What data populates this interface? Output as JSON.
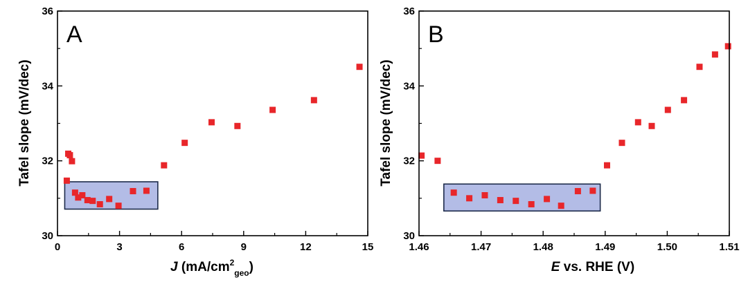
{
  "colors": {
    "marker": "#e8262a",
    "box_fill": "#b3bce6",
    "box_stroke": "#1c2a4a",
    "axis": "#000000"
  },
  "chart_data": [
    {
      "type": "scatter",
      "panel_label": "A",
      "ylabel": "Tafel slope (mV/dec)",
      "xlabel": {
        "var": "J",
        "pre": " (mA/cm",
        "sup": "2",
        "sub": "geo",
        "post": ")"
      },
      "xlim": [
        0,
        15
      ],
      "ylim": [
        30,
        36
      ],
      "xticks": [
        0,
        3,
        6,
        9,
        12,
        15
      ],
      "xtick_labels": [
        "0",
        "3",
        "6",
        "9",
        "12",
        "15"
      ],
      "yticks": [
        30,
        32,
        34,
        36
      ],
      "ytick_labels": [
        "30",
        "32",
        "34",
        "36"
      ],
      "points": [
        {
          "x": 0.45,
          "y": 31.47
        },
        {
          "x": 0.52,
          "y": 32.19
        },
        {
          "x": 0.6,
          "y": 32.15
        },
        {
          "x": 0.7,
          "y": 31.99
        },
        {
          "x": 0.85,
          "y": 31.15
        },
        {
          "x": 1.0,
          "y": 31.02
        },
        {
          "x": 1.2,
          "y": 31.08
        },
        {
          "x": 1.45,
          "y": 30.95
        },
        {
          "x": 1.7,
          "y": 30.93
        },
        {
          "x": 2.05,
          "y": 30.84
        },
        {
          "x": 2.5,
          "y": 30.98
        },
        {
          "x": 2.95,
          "y": 30.8
        },
        {
          "x": 3.65,
          "y": 31.19
        },
        {
          "x": 4.3,
          "y": 31.2
        },
        {
          "x": 5.15,
          "y": 31.88
        },
        {
          "x": 6.15,
          "y": 32.48
        },
        {
          "x": 7.45,
          "y": 33.03
        },
        {
          "x": 8.7,
          "y": 32.93
        },
        {
          "x": 10.4,
          "y": 33.36
        },
        {
          "x": 12.4,
          "y": 33.62
        },
        {
          "x": 14.6,
          "y": 34.51
        }
      ],
      "highlight_box": {
        "x0": 0.35,
        "x1": 4.85,
        "y0": 30.71,
        "y1": 31.44
      }
    },
    {
      "type": "scatter",
      "panel_label": "B",
      "ylabel": "Tafel slope (mV/dec)",
      "xlabel": {
        "var": "E",
        "pre": " vs. RHE (V)",
        "sup": "",
        "sub": "",
        "post": ""
      },
      "xlim": [
        1.46,
        1.51
      ],
      "ylim": [
        30,
        36
      ],
      "xticks": [
        1.46,
        1.47,
        1.48,
        1.49,
        1.5,
        1.51
      ],
      "xtick_labels": [
        "1.46",
        "1.47",
        "1.48",
        "1.49",
        "1.50",
        "1.51"
      ],
      "yticks": [
        30,
        32,
        34,
        36
      ],
      "ytick_labels": [
        "30",
        "32",
        "34",
        "36"
      ],
      "points": [
        {
          "x": 1.4604,
          "y": 32.14
        },
        {
          "x": 1.463,
          "y": 32.0
        },
        {
          "x": 1.4656,
          "y": 31.15
        },
        {
          "x": 1.4681,
          "y": 31.0
        },
        {
          "x": 1.4706,
          "y": 31.08
        },
        {
          "x": 1.4731,
          "y": 30.95
        },
        {
          "x": 1.4756,
          "y": 30.93
        },
        {
          "x": 1.4781,
          "y": 30.84
        },
        {
          "x": 1.4806,
          "y": 30.98
        },
        {
          "x": 1.4829,
          "y": 30.8
        },
        {
          "x": 1.4856,
          "y": 31.19
        },
        {
          "x": 1.488,
          "y": 31.2
        },
        {
          "x": 1.4903,
          "y": 31.88
        },
        {
          "x": 1.4927,
          "y": 32.48
        },
        {
          "x": 1.4953,
          "y": 33.03
        },
        {
          "x": 1.4975,
          "y": 32.93
        },
        {
          "x": 1.5001,
          "y": 33.36
        },
        {
          "x": 1.5027,
          "y": 33.62
        },
        {
          "x": 1.5052,
          "y": 34.51
        },
        {
          "x": 1.5077,
          "y": 34.84
        },
        {
          "x": 1.5098,
          "y": 35.06
        }
      ],
      "highlight_box": {
        "x0": 1.464,
        "x1": 1.4892,
        "y0": 30.66,
        "y1": 31.38
      }
    }
  ]
}
